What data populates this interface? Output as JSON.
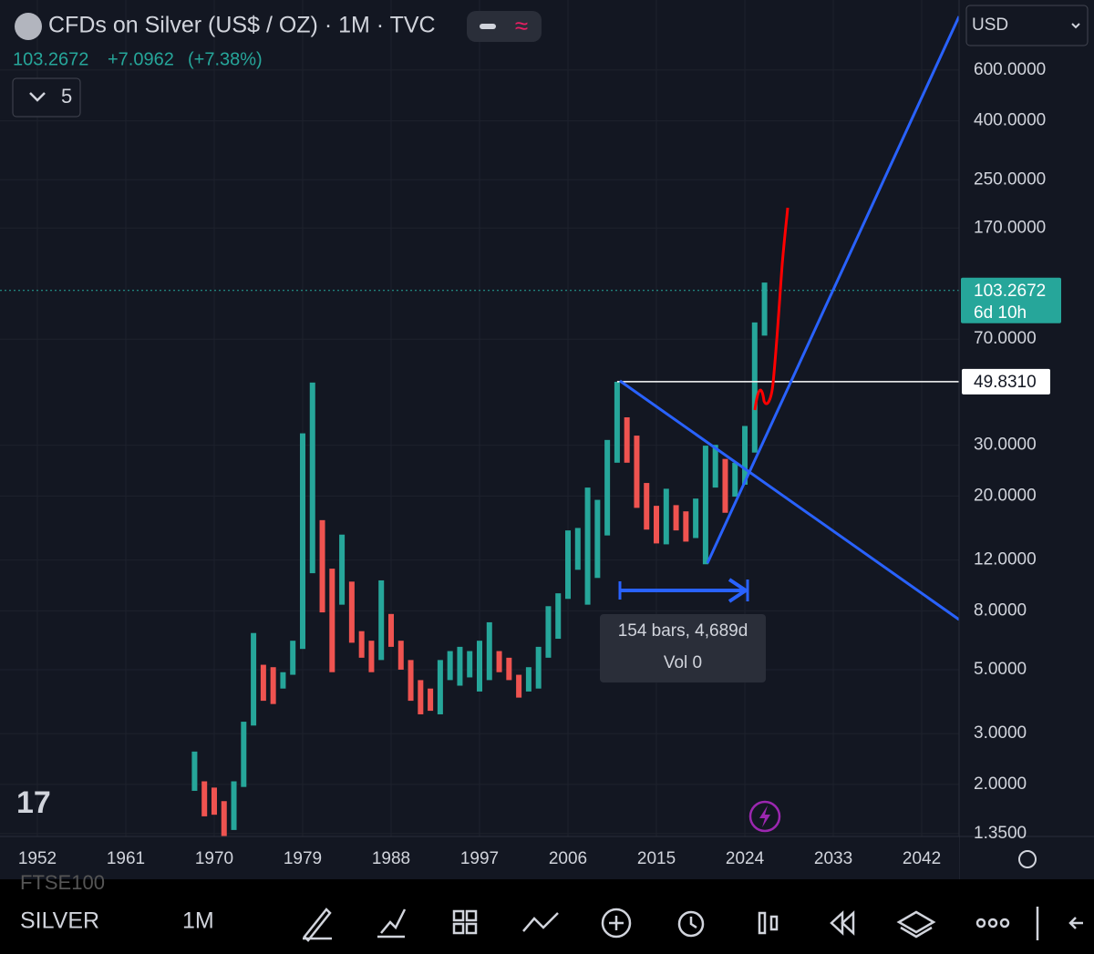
{
  "header": {
    "title": "CFDs on Silver (US$ / OZ) · 1M · TVC",
    "price": "103.2672",
    "change": "+7.0962",
    "change_pct": "(+7.38%)",
    "indicators": "5",
    "currency": "USD"
  },
  "chart_data": {
    "type": "range-bar",
    "log_scale": true,
    "x": [
      1968,
      1969,
      1970,
      1971,
      1972,
      1973,
      1974,
      1975,
      1976,
      1977,
      1978,
      1979,
      1980,
      1981,
      1982,
      1983,
      1984,
      1985,
      1986,
      1987,
      1988,
      1989,
      1990,
      1991,
      1992,
      1993,
      1994,
      1995,
      1996,
      1997,
      1998,
      1999,
      2000,
      2001,
      2002,
      2003,
      2004,
      2005,
      2006,
      2007,
      2008,
      2009,
      2010,
      2011,
      2012,
      2013,
      2014,
      2015,
      2016,
      2017,
      2018,
      2019,
      2020,
      2021,
      2022,
      2023,
      2024,
      2025,
      2026
    ],
    "low": [
      1.9,
      1.55,
      1.57,
      1.29,
      1.39,
      1.96,
      3.2,
      3.9,
      3.8,
      4.3,
      4.8,
      5.9,
      10.8,
      7.9,
      4.9,
      8.4,
      6.2,
      5.5,
      4.9,
      5.4,
      6,
      5,
      3.9,
      3.5,
      3.6,
      3.5,
      4.6,
      4.4,
      4.7,
      4.2,
      4.6,
      4.9,
      4.6,
      4,
      4.2,
      4.3,
      5.5,
      6.4,
      8.8,
      11.1,
      8.4,
      10.4,
      14.6,
      26.1,
      26.1,
      18.2,
      15.3,
      13.7,
      13.6,
      15.2,
      13.9,
      14.3,
      11.6,
      21.4,
      17.5,
      19.9,
      21.9,
      28.3,
      72
    ],
    "high": [
      2.6,
      2.05,
      1.95,
      1.75,
      2.05,
      3.3,
      6.7,
      5.2,
      5.1,
      4.9,
      6.3,
      33,
      49.5,
      16.5,
      11.2,
      14.7,
      10.1,
      6.8,
      6.3,
      10.2,
      7.8,
      6.3,
      5.4,
      4.6,
      4.3,
      5.4,
      5.8,
      6,
      5.8,
      6.3,
      7.3,
      5.8,
      5.5,
      4.8,
      5.1,
      6,
      8.3,
      9.2,
      15.2,
      15.5,
      21.4,
      19.4,
      31.3,
      49.8,
      37.5,
      32.4,
      22.2,
      18.5,
      21.2,
      18.6,
      17.7,
      19.6,
      29.9,
      30.1,
      26.9,
      26.1,
      35,
      80,
      110
    ],
    "up_color": "#26a69a",
    "down_color": "#ef5350",
    "xlim": [
      1948.2,
      2045.8
    ],
    "xticks": [
      1952,
      1961,
      1970,
      1979,
      1988,
      1997,
      2006,
      2015,
      2024,
      2033,
      2042
    ],
    "ylim": [
      1.32,
      1050
    ],
    "yticks": [
      {
        "value": 600,
        "label": "600.0000"
      },
      {
        "value": 400,
        "label": "400.0000"
      },
      {
        "value": 250,
        "label": "250.0000"
      },
      {
        "value": 170,
        "label": "170.0000"
      },
      {
        "value": 70,
        "label": "70.0000"
      },
      {
        "value": 30,
        "label": "30.0000"
      },
      {
        "value": 20,
        "label": "20.0000"
      },
      {
        "value": 12,
        "label": "12.0000"
      },
      {
        "value": 8,
        "label": "8.0000"
      },
      {
        "value": 5,
        "label": "5.0000"
      },
      {
        "value": 3,
        "label": "3.0000"
      },
      {
        "value": 2,
        "label": "2.0000"
      },
      {
        "value": 1.35,
        "label": "1.3500"
      }
    ],
    "last_price": 103.2672,
    "countdown": "6d 10h",
    "price_line": {
      "value": 49.831,
      "label": "49.8310"
    },
    "measure": {
      "label": "154 bars, 4,689d",
      "volume": "Vol 0"
    }
  },
  "toolbar": {
    "symbol": "SILVER",
    "interval": "1M",
    "above": "FTSE100"
  }
}
